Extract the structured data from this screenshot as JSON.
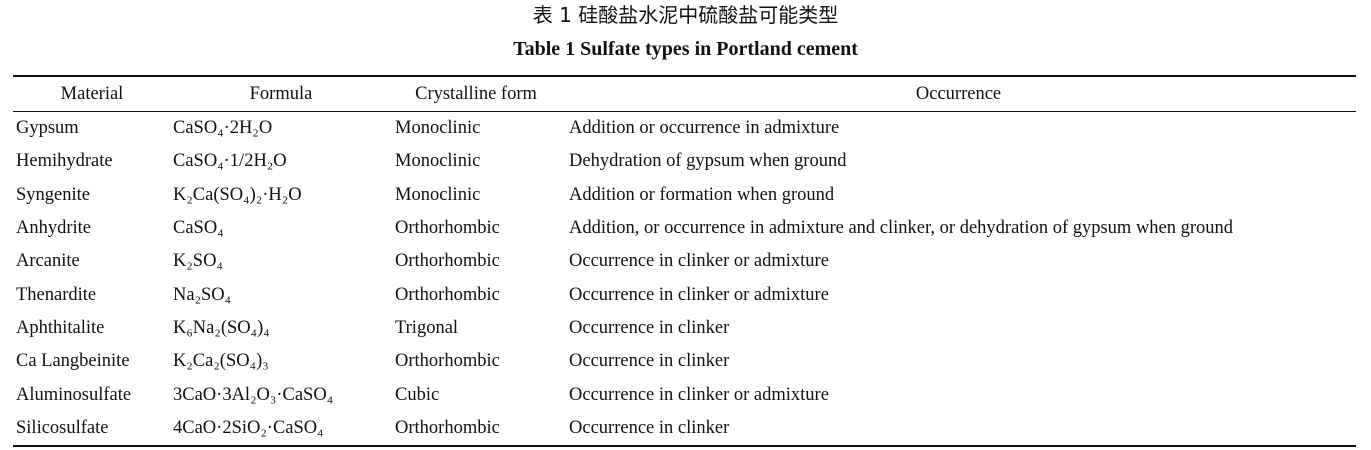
{
  "title_cn": "表 1    硅酸盐水泥中硫酸盐可能类型",
  "title_en": "Table 1    Sulfate types in Portland cement",
  "columns": [
    "Material",
    "Formula",
    "Crystalline form",
    "Occurrence"
  ],
  "rows": [
    {
      "material": "Gypsum",
      "formula": "CaSO₄·2H₂O",
      "crystalline": "Monoclinic",
      "occurrence": "Addition or occurrence in admixture"
    },
    {
      "material": "Hemihydrate",
      "formula": "CaSO₄·1/2H₂O",
      "crystalline": "Monoclinic",
      "occurrence": "Dehydration of gypsum when ground"
    },
    {
      "material": "Syngenite",
      "formula": "K₂Ca(SO₄)₂·H₂O",
      "crystalline": "Monoclinic",
      "occurrence": "Addition or formation when ground"
    },
    {
      "material": "Anhydrite",
      "formula": "CaSO₄",
      "crystalline": "Orthorhombic",
      "occurrence": "Addition, or occurrence in admixture and clinker, or dehydration of gypsum when ground"
    },
    {
      "material": "Arcanite",
      "formula": "K₂SO₄",
      "crystalline": "Orthorhombic",
      "occurrence": "Occurrence in clinker or admixture"
    },
    {
      "material": "Thenardite",
      "formula": "Na₂SO₄",
      "crystalline": "Orthorhombic",
      "occurrence": "Occurrence in clinker or admixture"
    },
    {
      "material": "Aphthitalite",
      "formula": "K₆Na₂(SO₄)₄",
      "crystalline": "Trigonal",
      "occurrence": "Occurrence in clinker"
    },
    {
      "material": "Ca Langbeinite",
      "formula": "K₂Ca₂(SO₄)₃",
      "crystalline": "Orthorhombic",
      "occurrence": "Occurrence in clinker"
    },
    {
      "material": "Aluminosulfate",
      "formula": "3CaO·3Al₂O₃·CaSO₄",
      "crystalline": "Cubic",
      "occurrence": "Occurrence in clinker or admixture"
    },
    {
      "material": "Silicosulfate",
      "formula": "4CaO·2SiO₂·CaSO₄",
      "crystalline": "Orthorhombic",
      "occurrence": "Occurrence in clinker"
    }
  ]
}
